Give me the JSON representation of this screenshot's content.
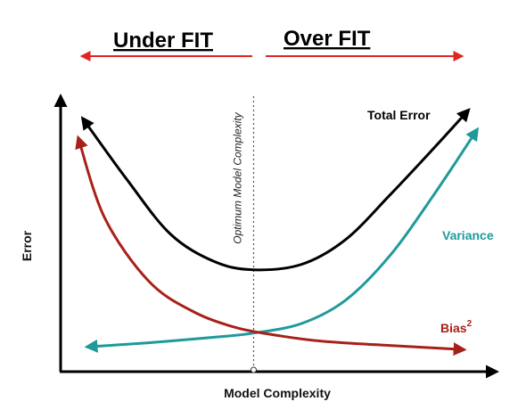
{
  "header": {
    "under_fit": "Under FIT",
    "over_fit": "Over FIT",
    "arrow_color": "#e0261f"
  },
  "chart_data": {
    "type": "line",
    "title": "",
    "xlabel": "Model Complexity",
    "ylabel": "Error",
    "xlim": [
      0,
      10
    ],
    "ylim": [
      0,
      10
    ],
    "grid": false,
    "optimum": {
      "x": 4.4,
      "label": "Optimum Model Complexity"
    },
    "series": [
      {
        "name": "Total Error",
        "label": "Total Error",
        "color": "#000000",
        "x": [
          0.5,
          1.5,
          2.5,
          3.5,
          4.4,
          5.5,
          6.5,
          7.5,
          8.5,
          9.3
        ],
        "y": [
          9.2,
          7.0,
          5.0,
          4.0,
          3.7,
          3.9,
          4.8,
          6.4,
          8.1,
          9.5
        ]
      },
      {
        "name": "Variance",
        "label": "Variance",
        "color": "#1e9a9a",
        "x": [
          0.6,
          2.0,
          3.5,
          4.4,
          5.5,
          6.5,
          7.5,
          8.5,
          9.5
        ],
        "y": [
          0.9,
          1.05,
          1.25,
          1.4,
          1.75,
          2.6,
          4.2,
          6.4,
          8.8
        ]
      },
      {
        "name": "Bias^2",
        "label": "Bias",
        "label_sup": "2",
        "color": "#a8201a",
        "x": [
          0.4,
          1.0,
          2.0,
          3.0,
          4.0,
          5.0,
          6.0,
          7.5,
          9.2
        ],
        "y": [
          8.5,
          5.6,
          3.3,
          2.2,
          1.6,
          1.3,
          1.1,
          0.95,
          0.8
        ]
      }
    ]
  }
}
